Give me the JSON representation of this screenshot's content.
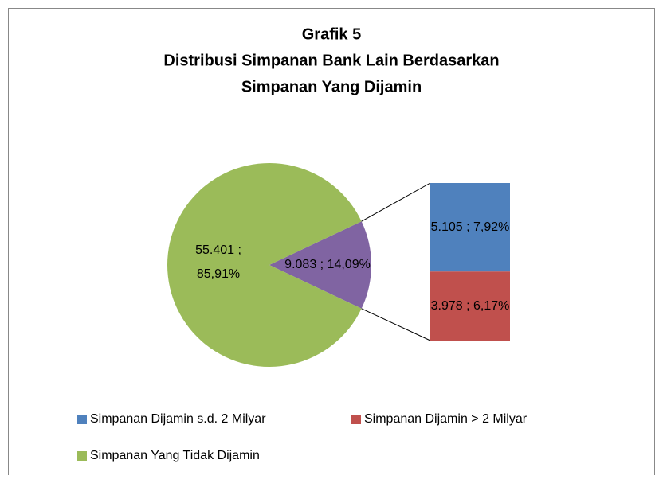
{
  "chart_data": {
    "type": "pie",
    "title": [
      "Grafik 5",
      "Distribusi Simpanan Bank Lain Berdasarkan",
      "Simpanan Yang Dijamin"
    ],
    "categories": [
      "Simpanan Dijamin s.d. 2 Milyar",
      "Simpanan Dijamin > 2 Milyar",
      "Simpanan Yang Tidak Dijamin"
    ],
    "values": [
      5105,
      3978,
      55401
    ],
    "value_labels": [
      "5.105 ; 7,92%",
      "3.978 ; 6,17%",
      "55.401 ; 85,91%"
    ],
    "colors": [
      "#4f81bd",
      "#c0504d",
      "#9bbb59"
    ],
    "secondary": [
      0,
      1
    ],
    "other_value": 9083,
    "other_label": "9.083 ; 14,09%",
    "other_color": "#8064a2"
  }
}
